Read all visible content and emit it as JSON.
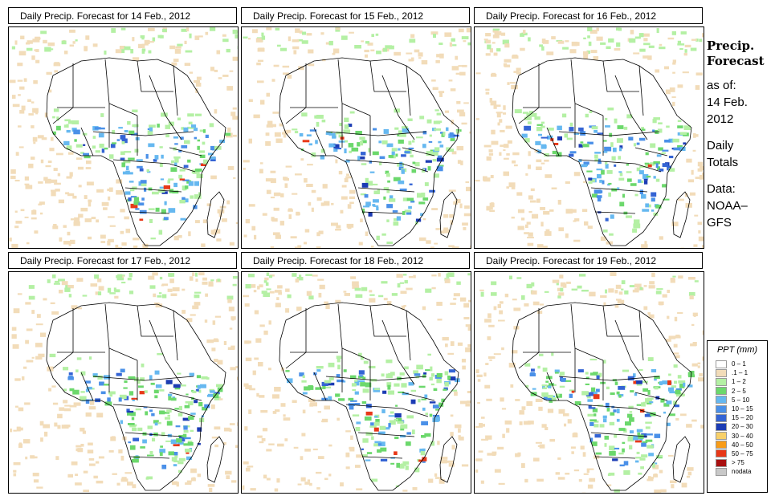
{
  "panels": [
    {
      "title": "Daily Precip. Forecast for  14 Feb., 2012",
      "day": 14
    },
    {
      "title": "Daily Precip. Forecast for  15 Feb., 2012",
      "day": 15
    },
    {
      "title": "Daily Precip. Forecast for  16 Feb., 2012",
      "day": 16
    },
    {
      "title": "Daily Precip. Forecast for  17 Feb., 2012",
      "day": 17
    },
    {
      "title": "Daily Precip. Forecast for  18 Feb., 2012",
      "day": 18
    },
    {
      "title": "Daily Precip. Forecast for  19 Feb., 2012",
      "day": 19
    }
  ],
  "side": {
    "heading_line1": "Precip.",
    "heading_line2": "Forecast",
    "asof_line1": "as of:",
    "asof_line2": "14 Feb.",
    "asof_line3": "2012",
    "totals_line1": "Daily",
    "totals_line2": "Totals",
    "data_line1": "Data:",
    "data_line2": "NOAA–",
    "data_line3": "GFS"
  },
  "legend": {
    "title": "PPT (mm)",
    "items": [
      {
        "label": "0 – 1",
        "color": "#ffffff"
      },
      {
        "label": ".1 – 1",
        "color": "#f2dcb9"
      },
      {
        "label": "1 – 2",
        "color": "#b4f0a4"
      },
      {
        "label": "2 – 5",
        "color": "#6cd86c"
      },
      {
        "label": "5 – 10",
        "color": "#66b8f0"
      },
      {
        "label": "10 – 15",
        "color": "#4a90e8"
      },
      {
        "label": "15 – 20",
        "color": "#3464d4"
      },
      {
        "label": "20 – 30",
        "color": "#1c3cb4"
      },
      {
        "label": "30 – 40",
        "color": "#f8d068"
      },
      {
        "label": "40 – 50",
        "color": "#f89c18"
      },
      {
        "label": "50 – 75",
        "color": "#e83818"
      },
      {
        "label": "> 75",
        "color": "#a81010"
      },
      {
        "label": "nodata",
        "color": "#c8c8c8"
      }
    ]
  }
}
